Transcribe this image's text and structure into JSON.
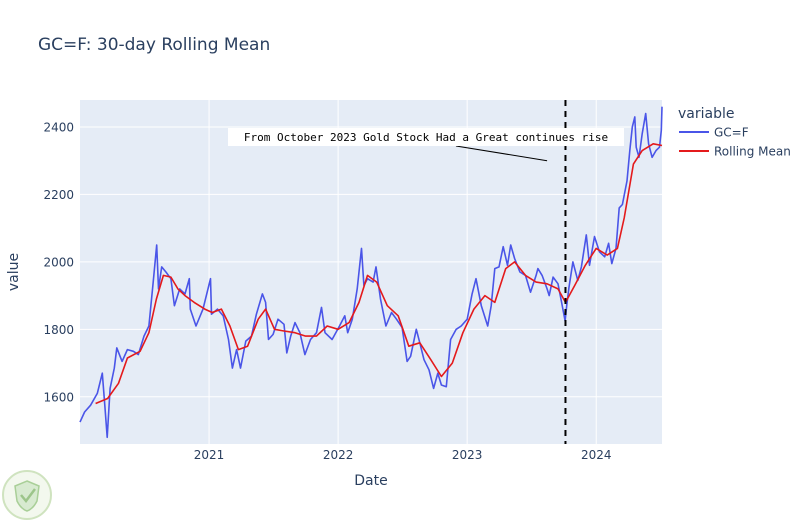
{
  "chart_data": {
    "type": "line",
    "title": "GC=F: 30-day Rolling Mean",
    "xlabel": "Date",
    "ylabel": "value",
    "x_ticks": [
      "2021",
      "2022",
      "2023",
      "2024"
    ],
    "x_tick_dates": [
      "2021-01-01",
      "2022-01-01",
      "2023-01-01",
      "2024-01-01"
    ],
    "y_ticks": [
      1600,
      1800,
      2000,
      2200,
      2400
    ],
    "xlim": [
      "2020-01-02",
      "2024-07-05"
    ],
    "ylim": [
      1460,
      2480
    ],
    "grid": true,
    "legend_title": "variable",
    "legend_position": "right",
    "vline": {
      "date": "2023-10-06",
      "style": "dashed",
      "color": "#000000"
    },
    "annotation": {
      "text": "From October 2023 Gold Stock Had a Great continues rise",
      "anchor_date": "2023-08-15",
      "anchor_value": 2300
    },
    "colors": {
      "plot_bg": "#e5ecf6",
      "grid": "#ffffff"
    },
    "series": [
      {
        "name": "GC=F",
        "color": "#4a55e8",
        "points": [
          [
            "2020-01-02",
            1525
          ],
          [
            "2020-01-15",
            1555
          ],
          [
            "2020-02-01",
            1575
          ],
          [
            "2020-02-20",
            1610
          ],
          [
            "2020-03-05",
            1670
          ],
          [
            "2020-03-12",
            1575
          ],
          [
            "2020-03-19",
            1480
          ],
          [
            "2020-03-27",
            1625
          ],
          [
            "2020-04-08",
            1685
          ],
          [
            "2020-04-15",
            1745
          ],
          [
            "2020-04-30",
            1705
          ],
          [
            "2020-05-15",
            1740
          ],
          [
            "2020-06-01",
            1735
          ],
          [
            "2020-06-15",
            1725
          ],
          [
            "2020-07-01",
            1780
          ],
          [
            "2020-07-15",
            1810
          ],
          [
            "2020-07-27",
            1940
          ],
          [
            "2020-08-06",
            2050
          ],
          [
            "2020-08-11",
            1920
          ],
          [
            "2020-08-20",
            1985
          ],
          [
            "2020-09-01",
            1970
          ],
          [
            "2020-09-15",
            1950
          ],
          [
            "2020-09-25",
            1870
          ],
          [
            "2020-10-10",
            1920
          ],
          [
            "2020-10-25",
            1905
          ],
          [
            "2020-11-06",
            1950
          ],
          [
            "2020-11-09",
            1860
          ],
          [
            "2020-11-25",
            1810
          ],
          [
            "2020-12-15",
            1860
          ],
          [
            "2021-01-05",
            1950
          ],
          [
            "2021-01-08",
            1845
          ],
          [
            "2021-01-25",
            1860
          ],
          [
            "2021-02-10",
            1840
          ],
          [
            "2021-02-25",
            1770
          ],
          [
            "2021-03-08",
            1685
          ],
          [
            "2021-03-20",
            1740
          ],
          [
            "2021-03-31",
            1685
          ],
          [
            "2021-04-15",
            1765
          ],
          [
            "2021-05-01",
            1780
          ],
          [
            "2021-05-15",
            1845
          ],
          [
            "2021-06-01",
            1905
          ],
          [
            "2021-06-10",
            1880
          ],
          [
            "2021-06-18",
            1770
          ],
          [
            "2021-07-01",
            1785
          ],
          [
            "2021-07-15",
            1830
          ],
          [
            "2021-08-01",
            1815
          ],
          [
            "2021-08-09",
            1730
          ],
          [
            "2021-08-20",
            1780
          ],
          [
            "2021-09-01",
            1820
          ],
          [
            "2021-09-15",
            1790
          ],
          [
            "2021-09-29",
            1725
          ],
          [
            "2021-10-15",
            1770
          ],
          [
            "2021-11-01",
            1790
          ],
          [
            "2021-11-15",
            1865
          ],
          [
            "2021-11-25",
            1790
          ],
          [
            "2021-12-15",
            1770
          ],
          [
            "2022-01-05",
            1810
          ],
          [
            "2022-01-20",
            1840
          ],
          [
            "2022-01-28",
            1790
          ],
          [
            "2022-02-10",
            1830
          ],
          [
            "2022-02-24",
            1920
          ],
          [
            "2022-03-08",
            2040
          ],
          [
            "2022-03-15",
            1930
          ],
          [
            "2022-03-25",
            1950
          ],
          [
            "2022-04-10",
            1940
          ],
          [
            "2022-04-18",
            1985
          ],
          [
            "2022-05-01",
            1890
          ],
          [
            "2022-05-16",
            1810
          ],
          [
            "2022-06-01",
            1850
          ],
          [
            "2022-06-15",
            1830
          ],
          [
            "2022-07-01",
            1805
          ],
          [
            "2022-07-15",
            1705
          ],
          [
            "2022-07-25",
            1720
          ],
          [
            "2022-08-10",
            1800
          ],
          [
            "2022-08-20",
            1760
          ],
          [
            "2022-09-01",
            1710
          ],
          [
            "2022-09-15",
            1680
          ],
          [
            "2022-09-28",
            1625
          ],
          [
            "2022-10-10",
            1670
          ],
          [
            "2022-10-20",
            1635
          ],
          [
            "2022-11-03",
            1630
          ],
          [
            "2022-11-15",
            1770
          ],
          [
            "2022-12-01",
            1800
          ],
          [
            "2022-12-15",
            1810
          ],
          [
            "2023-01-01",
            1830
          ],
          [
            "2023-01-15",
            1905
          ],
          [
            "2023-01-26",
            1950
          ],
          [
            "2023-02-10",
            1870
          ],
          [
            "2023-02-28",
            1810
          ],
          [
            "2023-03-10",
            1870
          ],
          [
            "2023-03-20",
            1980
          ],
          [
            "2023-04-01",
            1985
          ],
          [
            "2023-04-13",
            2045
          ],
          [
            "2023-04-25",
            1990
          ],
          [
            "2023-05-04",
            2050
          ],
          [
            "2023-05-15",
            2010
          ],
          [
            "2023-05-30",
            1970
          ],
          [
            "2023-06-15",
            1960
          ],
          [
            "2023-06-29",
            1910
          ],
          [
            "2023-07-15",
            1960
          ],
          [
            "2023-07-20",
            1980
          ],
          [
            "2023-08-01",
            1960
          ],
          [
            "2023-08-15",
            1920
          ],
          [
            "2023-08-21",
            1900
          ],
          [
            "2023-09-01",
            1955
          ],
          [
            "2023-09-15",
            1935
          ],
          [
            "2023-09-25",
            1880
          ],
          [
            "2023-10-05",
            1825
          ],
          [
            "2023-10-10",
            1875
          ],
          [
            "2023-10-16",
            1925
          ],
          [
            "2023-10-27",
            2000
          ],
          [
            "2023-11-10",
            1945
          ],
          [
            "2023-11-20",
            1985
          ],
          [
            "2023-12-04",
            2080
          ],
          [
            "2023-12-13",
            1990
          ],
          [
            "2023-12-27",
            2075
          ],
          [
            "2024-01-10",
            2030
          ],
          [
            "2024-01-25",
            2015
          ],
          [
            "2024-02-05",
            2055
          ],
          [
            "2024-02-14",
            1995
          ],
          [
            "2024-02-26",
            2040
          ],
          [
            "2024-03-06",
            2160
          ],
          [
            "2024-03-15",
            2170
          ],
          [
            "2024-03-28",
            2240
          ],
          [
            "2024-04-05",
            2330
          ],
          [
            "2024-04-12",
            2400
          ],
          [
            "2024-04-19",
            2430
          ],
          [
            "2024-04-23",
            2340
          ],
          [
            "2024-05-01",
            2310
          ],
          [
            "2024-05-10",
            2380
          ],
          [
            "2024-05-20",
            2440
          ],
          [
            "2024-05-28",
            2350
          ],
          [
            "2024-06-07",
            2310
          ],
          [
            "2024-06-18",
            2330
          ],
          [
            "2024-06-28",
            2340
          ],
          [
            "2024-07-03",
            2390
          ],
          [
            "2024-07-05",
            2460
          ]
        ]
      },
      {
        "name": "Rolling Mean",
        "color": "#e41a1c",
        "points": [
          [
            "2020-02-15",
            1580
          ],
          [
            "2020-03-20",
            1595
          ],
          [
            "2020-04-20",
            1640
          ],
          [
            "2020-05-15",
            1715
          ],
          [
            "2020-06-20",
            1735
          ],
          [
            "2020-07-15",
            1790
          ],
          [
            "2020-08-05",
            1890
          ],
          [
            "2020-08-25",
            1960
          ],
          [
            "2020-09-15",
            1955
          ],
          [
            "2020-10-05",
            1920
          ],
          [
            "2020-10-25",
            1900
          ],
          [
            "2020-11-20",
            1880
          ],
          [
            "2020-12-20",
            1860
          ],
          [
            "2021-01-10",
            1850
          ],
          [
            "2021-02-05",
            1860
          ],
          [
            "2021-03-01",
            1810
          ],
          [
            "2021-03-25",
            1740
          ],
          [
            "2021-04-20",
            1750
          ],
          [
            "2021-05-20",
            1830
          ],
          [
            "2021-06-10",
            1860
          ],
          [
            "2021-07-05",
            1800
          ],
          [
            "2021-08-01",
            1795
          ],
          [
            "2021-09-01",
            1790
          ],
          [
            "2021-10-01",
            1780
          ],
          [
            "2021-11-01",
            1780
          ],
          [
            "2021-12-01",
            1810
          ],
          [
            "2022-01-01",
            1800
          ],
          [
            "2022-02-01",
            1820
          ],
          [
            "2022-03-01",
            1880
          ],
          [
            "2022-03-25",
            1960
          ],
          [
            "2022-04-20",
            1940
          ],
          [
            "2022-05-20",
            1870
          ],
          [
            "2022-06-20",
            1840
          ],
          [
            "2022-07-20",
            1750
          ],
          [
            "2022-08-20",
            1760
          ],
          [
            "2022-09-20",
            1710
          ],
          [
            "2022-10-20",
            1660
          ],
          [
            "2022-11-20",
            1700
          ],
          [
            "2022-12-20",
            1790
          ],
          [
            "2023-01-20",
            1860
          ],
          [
            "2023-02-20",
            1900
          ],
          [
            "2023-03-20",
            1880
          ],
          [
            "2023-04-20",
            1980
          ],
          [
            "2023-05-15",
            2000
          ],
          [
            "2023-06-15",
            1960
          ],
          [
            "2023-07-15",
            1940
          ],
          [
            "2023-08-15",
            1935
          ],
          [
            "2023-09-15",
            1920
          ],
          [
            "2023-10-06",
            1880
          ],
          [
            "2023-11-01",
            1930
          ],
          [
            "2023-12-01",
            1990
          ],
          [
            "2024-01-01",
            2040
          ],
          [
            "2024-02-01",
            2020
          ],
          [
            "2024-03-01",
            2040
          ],
          [
            "2024-03-20",
            2130
          ],
          [
            "2024-04-15",
            2290
          ],
          [
            "2024-05-10",
            2330
          ],
          [
            "2024-06-10",
            2350
          ],
          [
            "2024-07-05",
            2345
          ]
        ]
      }
    ]
  },
  "footer": {
    "logo": "shield-logo"
  }
}
